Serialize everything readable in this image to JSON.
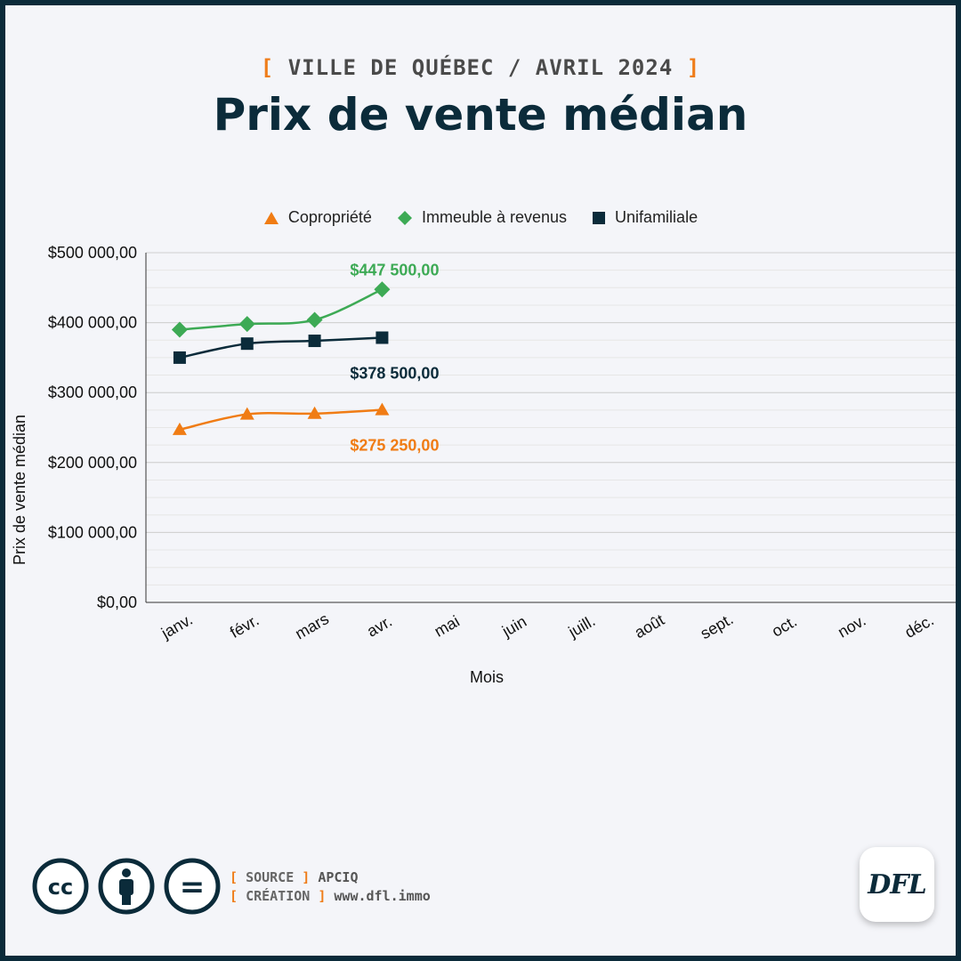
{
  "header": {
    "kicker": "VILLE DE QUÉBEC / AVRIL 2024",
    "title": "Prix de vente médian"
  },
  "chart_data": {
    "type": "line",
    "title": "Prix de vente médian",
    "subtitle": "VILLE DE QUÉBEC / AVRIL 2024",
    "xlabel": "Mois",
    "ylabel": "Prix de vente médian",
    "categories": [
      "janv.",
      "févr.",
      "mars",
      "avr.",
      "mai",
      "juin",
      "juill.",
      "août",
      "sept.",
      "oct.",
      "nov.",
      "déc."
    ],
    "ylim": [
      0,
      500000
    ],
    "yticks": [
      0,
      100000,
      200000,
      300000,
      400000,
      500000
    ],
    "ytick_labels": [
      "$0,00",
      "$100 000,00",
      "$200 000,00",
      "$300 000,00",
      "$400 000,00",
      "$500 000,00"
    ],
    "grid": true,
    "legend_position": "top",
    "series": [
      {
        "name": "Copropriété",
        "marker": "triangle",
        "color": "#f07c14",
        "values": [
          247000,
          269000,
          270000,
          275250,
          null,
          null,
          null,
          null,
          null,
          null,
          null,
          null
        ],
        "last_label": "$275 250,00"
      },
      {
        "name": "Immeuble à revenus",
        "marker": "diamond",
        "color": "#3daa55",
        "values": [
          390000,
          398000,
          404000,
          447500,
          null,
          null,
          null,
          null,
          null,
          null,
          null,
          null
        ],
        "last_label": "$447 500,00"
      },
      {
        "name": "Unifamiliale",
        "marker": "square",
        "color": "#0b2b3a",
        "values": [
          350000,
          370000,
          374000,
          378500,
          null,
          null,
          null,
          null,
          null,
          null,
          null,
          null
        ],
        "last_label": "$378 500,00"
      }
    ]
  },
  "footer": {
    "source_key": "SOURCE",
    "source_value": "APCIQ",
    "creation_key": "CRÉATION",
    "creation_value": "www.dfl.immo",
    "badges": [
      "cc-icon",
      "attribution-icon",
      "no-derivatives-icon"
    ],
    "cc_text": "cc",
    "nd_text": "=",
    "logo_text": "DFL"
  }
}
